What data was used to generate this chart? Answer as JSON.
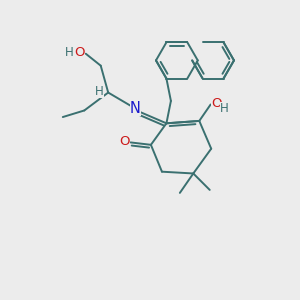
{
  "bg_color": "#ececec",
  "bond_color": "#3a7070",
  "n_color": "#1a1acc",
  "o_color": "#cc1a1a",
  "lw": 1.4,
  "fs": 9.5,
  "figsize": [
    3.0,
    3.0
  ],
  "dpi": 100,
  "xlim": [
    0,
    10
  ],
  "ylim": [
    0,
    10
  ]
}
